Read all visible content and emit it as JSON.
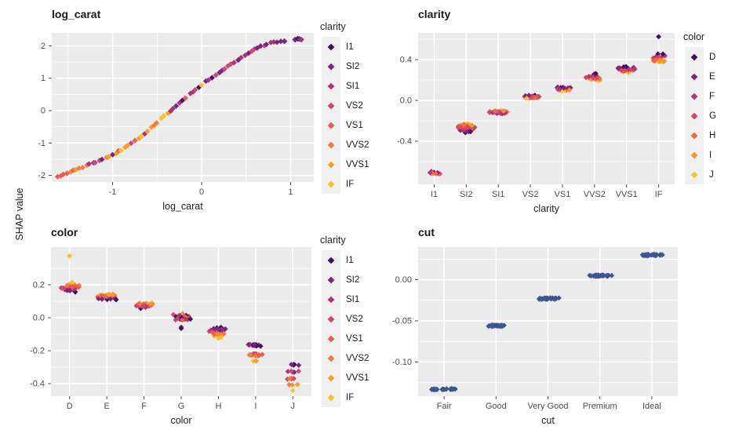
{
  "figure": {
    "shared_y_axis_label": "SHAP value",
    "colors": {
      "panel_background": "#EBEBEB",
      "grid": "#FFFFFF",
      "tick_mark": "#4D4D4D",
      "tick_label": "#4D4D4D",
      "text": "#1A1A1A",
      "legend_key_background": "#F0F0F0",
      "cut_point": "#3C5690"
    },
    "palettes": {
      "clarity": [
        "#45105E",
        "#7B2382",
        "#A9347A",
        "#CC4977",
        "#E85F4D",
        "#F57E3D",
        "#FA9E2B",
        "#FBC22B"
      ],
      "color": [
        "#451063",
        "#85267E",
        "#B23778",
        "#D94A60",
        "#EE6C3E",
        "#F9962B",
        "#FBC52D"
      ]
    }
  },
  "chart_data": [
    {
      "id": "log_carat",
      "type": "scatter",
      "title": "log_carat",
      "xlabel": "log_carat",
      "x_domain": [
        -1.683,
        1.26
      ],
      "y_domain": [
        -2.203,
        2.397
      ],
      "x_ticks": [
        {
          "v": -1,
          "label": "-1"
        },
        {
          "v": 0,
          "label": "0"
        },
        {
          "v": 1,
          "label": "1"
        }
      ],
      "x_minor": [
        -1.5,
        -0.5,
        0.5
      ],
      "y_ticks": [
        {
          "v": 2,
          "label": "2"
        },
        {
          "v": 1,
          "label": "1"
        },
        {
          "v": 0,
          "label": "0"
        },
        {
          "v": -1,
          "label": "-1"
        },
        {
          "v": -2,
          "label": "-2"
        }
      ],
      "y_minor": [
        1.5,
        0.5,
        -0.5,
        -1.5
      ],
      "legend": {
        "title": "clarity",
        "palette": "clarity",
        "labels": [
          "I1",
          "SI2",
          "SI1",
          "VS2",
          "VS1",
          "VVS2",
          "VVS1",
          "IF"
        ]
      },
      "curve": {
        "n": 70,
        "x_range": [
          -1.62,
          0.88
        ],
        "anchors": [
          [
            -1.62,
            -2.04
          ],
          [
            -1.45,
            -1.86
          ],
          [
            -1.3,
            -1.7
          ],
          [
            -1.15,
            -1.53
          ],
          [
            -1.0,
            -1.37
          ],
          [
            -0.85,
            -1.12
          ],
          [
            -0.7,
            -0.85
          ],
          [
            -0.55,
            -0.5
          ],
          [
            -0.4,
            -0.12
          ],
          [
            -0.25,
            0.22
          ],
          [
            -0.1,
            0.57
          ],
          [
            0,
            0.8
          ],
          [
            0.15,
            1.08
          ],
          [
            0.3,
            1.38
          ],
          [
            0.45,
            1.64
          ],
          [
            0.6,
            1.9
          ],
          [
            0.7,
            2.02
          ],
          [
            0.8,
            2.1
          ],
          [
            0.88,
            2.13
          ]
        ],
        "segments": [
          {
            "upto": -1.5,
            "pool": [
              3,
              4
            ]
          },
          {
            "upto": -1.28,
            "pool": [
              5,
              6,
              4,
              6
            ]
          },
          {
            "upto": -0.95,
            "pool": [
              6,
              5,
              2,
              3,
              1,
              6
            ]
          },
          {
            "upto": -0.55,
            "pool": [
              4,
              3,
              7,
              5,
              2,
              6
            ]
          },
          {
            "upto": -0.22,
            "pool": [
              7,
              5,
              2,
              3,
              6,
              1
            ]
          },
          {
            "upto": 0.12,
            "pool": [
              1,
              2,
              0,
              4,
              3,
              7
            ]
          },
          {
            "upto": 0.5,
            "pool": [
              2,
              3,
              1,
              4,
              2
            ]
          },
          {
            "upto": 0.72,
            "pool": [
              3,
              2,
              4,
              1
            ]
          },
          {
            "upto": 2,
            "pool": [
              0,
              1,
              1,
              2
            ]
          }
        ]
      },
      "extra_points": [
        [
          0.93,
          2.14,
          1
        ],
        [
          1.05,
          2.19,
          1
        ],
        [
          1.08,
          2.22,
          0
        ],
        [
          1.1,
          2.21,
          1
        ],
        [
          1.12,
          2.19,
          2
        ]
      ]
    },
    {
      "id": "clarity",
      "type": "strip",
      "title": "clarity",
      "xlabel": "clarity",
      "categories": [
        "I1",
        "SI2",
        "SI1",
        "VS2",
        "VS1",
        "VVS2",
        "VVS1",
        "IF"
      ],
      "y_domain": [
        -0.823,
        0.662
      ],
      "y_ticks": [
        {
          "v": 0.4,
          "label": "0.4"
        },
        {
          "v": 0,
          "label": "0.0"
        },
        {
          "v": -0.4,
          "label": "-0.4"
        }
      ],
      "y_minor": [
        0.6,
        0.2,
        -0.2,
        -0.6
      ],
      "legend": {
        "title": "color",
        "palette": "color",
        "labels": [
          "D",
          "E",
          "F",
          "G",
          "H",
          "I",
          "J"
        ]
      },
      "palette": "color",
      "blobs": [
        {
          "c": 0,
          "v": -0.71,
          "s": 0.013,
          "w": 11,
          "n": 16,
          "pool": [
            2,
            3,
            4,
            5,
            1
          ]
        },
        {
          "c": 1,
          "v": -0.265,
          "s": 0.052,
          "w": 13,
          "n": 60,
          "grad": "light-top"
        },
        {
          "c": 2,
          "v": -0.115,
          "s": 0.021,
          "w": 13,
          "n": 42,
          "grad": "light-top"
        },
        {
          "c": 3,
          "v": 0.035,
          "s": 0.021,
          "w": 12,
          "n": 36,
          "grad": "dark-top"
        },
        {
          "c": 4,
          "v": 0.11,
          "s": 0.021,
          "w": 13,
          "n": 36,
          "grad": "dark-top"
        },
        {
          "c": 5,
          "v": 0.225,
          "s": 0.042,
          "w": 13,
          "n": 32,
          "grad": "dark-top"
        },
        {
          "c": 6,
          "v": 0.3,
          "s": 0.035,
          "w": 12,
          "n": 30,
          "grad": "dark-top"
        },
        {
          "c": 7,
          "v": 0.415,
          "s": 0.05,
          "w": 10,
          "n": 26,
          "grad": "dark-top"
        }
      ],
      "outliers": [
        [
          7,
          0.625,
          0
        ]
      ]
    },
    {
      "id": "color",
      "type": "strip",
      "title": "color",
      "xlabel": "color",
      "categories": [
        "D",
        "E",
        "F",
        "G",
        "H",
        "I",
        "J"
      ],
      "y_domain": [
        -0.476,
        0.429
      ],
      "y_ticks": [
        {
          "v": 0.2,
          "label": "0.2"
        },
        {
          "v": 0,
          "label": "0.0"
        },
        {
          "v": -0.2,
          "label": "-0.2"
        },
        {
          "v": -0.4,
          "label": "-0.4"
        }
      ],
      "y_minor": [
        0.3,
        0.1,
        -0.1,
        -0.3
      ],
      "legend": {
        "title": "clarity",
        "palette": "clarity",
        "labels": [
          "I1",
          "SI2",
          "SI1",
          "VS2",
          "VS1",
          "VVS2",
          "VVS1",
          "IF"
        ]
      },
      "palette": "clarity",
      "blobs": [
        {
          "c": 0,
          "v": 0.185,
          "s": 0.031,
          "w": 14,
          "n": 48,
          "grad": "light-top"
        },
        {
          "c": 1,
          "v": 0.128,
          "s": 0.02,
          "w": 14,
          "n": 42,
          "grad": "light-top"
        },
        {
          "c": 2,
          "v": 0.075,
          "s": 0.02,
          "w": 13,
          "n": 40,
          "grad": "light-top"
        },
        {
          "c": 3,
          "v": 0.005,
          "s": 0.026,
          "w": 13,
          "n": 36
        },
        {
          "c": 4,
          "v": -0.088,
          "s": 0.032,
          "w": 14,
          "n": 36,
          "grad": "dark-top"
        },
        {
          "c": 5,
          "v": -0.168,
          "s": 0.01,
          "w": 13,
          "n": 18,
          "pool": [
            0,
            1,
            2
          ]
        },
        {
          "c": 5,
          "v": -0.226,
          "s": 0.01,
          "w": 13,
          "n": 15,
          "pool": [
            3,
            4,
            5
          ]
        },
        {
          "c": 5,
          "v": -0.262,
          "s": 0.004,
          "w": 5,
          "n": 3,
          "pool": [
            6,
            7
          ]
        },
        {
          "c": 6,
          "v": -0.285,
          "s": 0.004,
          "w": 10,
          "n": 5,
          "pool": [
            0,
            1
          ]
        },
        {
          "c": 6,
          "v": -0.328,
          "s": 0.005,
          "w": 12,
          "n": 6,
          "pool": [
            1,
            2,
            3
          ]
        },
        {
          "c": 6,
          "v": -0.372,
          "s": 0.005,
          "w": 12,
          "n": 6,
          "pool": [
            3,
            4,
            5
          ]
        },
        {
          "c": 6,
          "v": -0.408,
          "s": 0.004,
          "w": 9,
          "n": 4,
          "pool": [
            5,
            6
          ]
        },
        {
          "c": 6,
          "v": -0.441,
          "s": 0,
          "w": 1,
          "n": 1,
          "pool": [
            7
          ]
        }
      ],
      "outliers": [
        [
          0,
          0.375,
          7
        ],
        [
          3,
          -0.057,
          1
        ],
        [
          3,
          -0.065,
          0
        ],
        [
          4,
          -0.125,
          7
        ]
      ]
    },
    {
      "id": "cut",
      "type": "strip",
      "title": "cut",
      "xlabel": "cut",
      "categories": [
        "Fair",
        "Good",
        "Very Good",
        "Premium",
        "Ideal"
      ],
      "y_domain": [
        -0.1415,
        0.0396
      ],
      "y_ticks": [
        {
          "v": 0,
          "label": "0.00"
        },
        {
          "v": -0.05,
          "label": "-0.05"
        },
        {
          "v": -0.1,
          "label": "-0.10"
        }
      ],
      "y_minor": [
        0.025,
        -0.025,
        -0.075,
        -0.125
      ],
      "point_color": "cut_point",
      "blobs": [
        {
          "c": 0,
          "v": -0.133,
          "dx": -12,
          "s": 0.001,
          "w": 5,
          "n": 10
        },
        {
          "c": 0,
          "v": -0.133,
          "dx": -1,
          "s": 0.001,
          "w": 5,
          "n": 10
        },
        {
          "c": 0,
          "v": -0.133,
          "dx": 10,
          "s": 0.001,
          "w": 5,
          "n": 10
        },
        {
          "c": 1,
          "v": -0.056,
          "s": 0.001,
          "w": 14,
          "n": 34
        },
        {
          "c": 2,
          "v": -0.023,
          "s": 0.001,
          "w": 15,
          "n": 34
        },
        {
          "c": 3,
          "v": 0.005,
          "s": 0.001,
          "w": 16,
          "n": 34
        },
        {
          "c": 4,
          "v": 0.03,
          "s": 0.001,
          "w": 17,
          "n": 36
        }
      ],
      "outliers": []
    }
  ]
}
